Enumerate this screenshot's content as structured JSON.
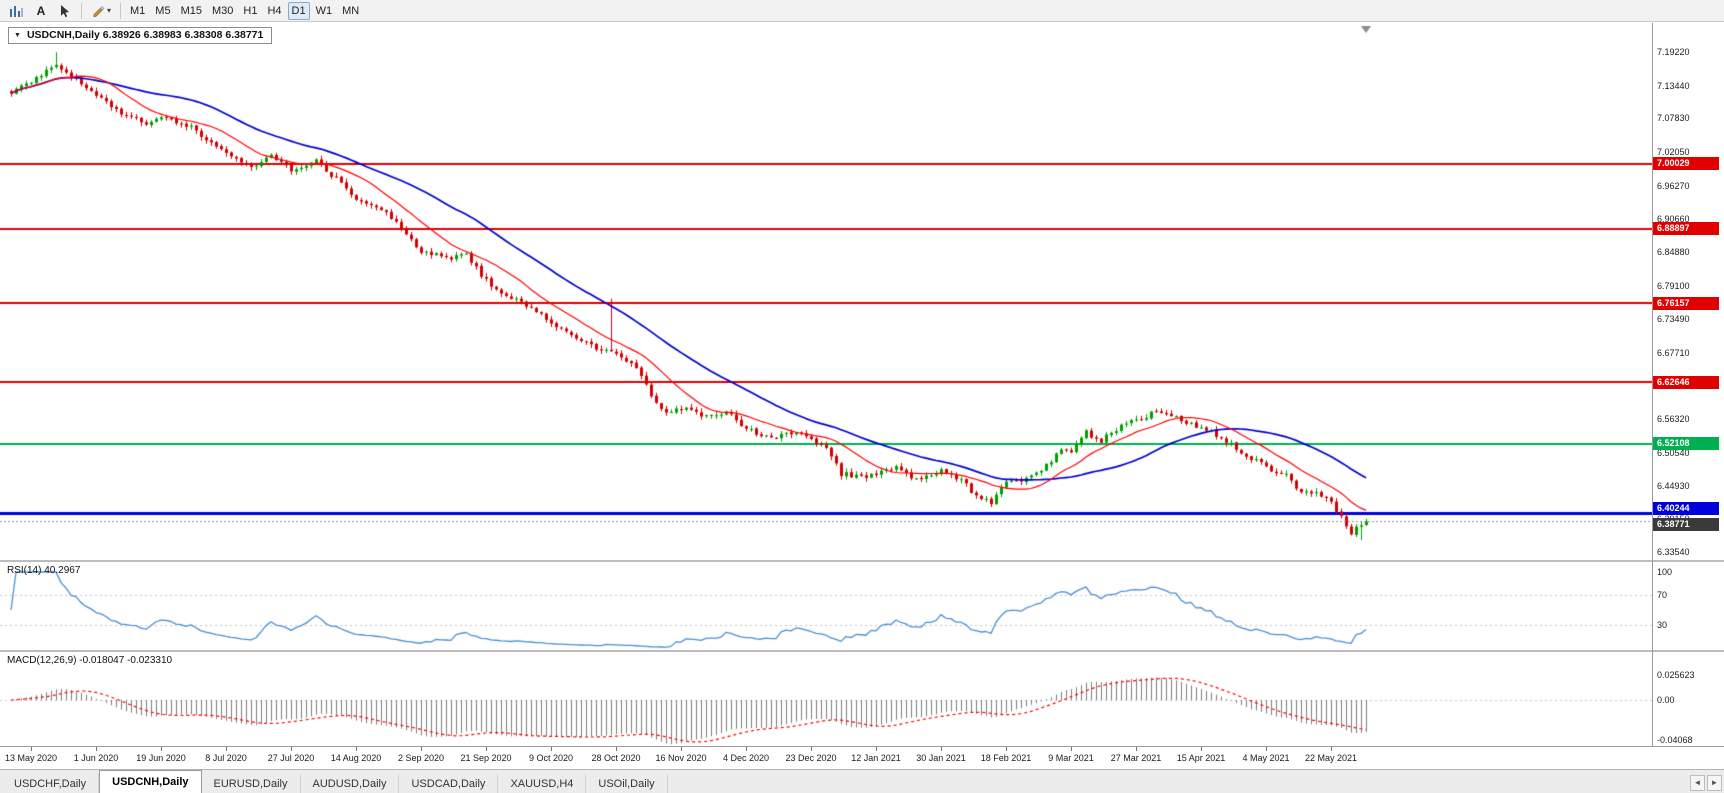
{
  "toolbar": {
    "text_tool_label": "A",
    "timeframes": [
      {
        "label": "M1",
        "active": false
      },
      {
        "label": "M5",
        "active": false
      },
      {
        "label": "M15",
        "active": false
      },
      {
        "label": "M30",
        "active": false
      },
      {
        "label": "H1",
        "active": false
      },
      {
        "label": "H4",
        "active": false
      },
      {
        "label": "D1",
        "active": true
      },
      {
        "label": "W1",
        "active": false
      },
      {
        "label": "MN",
        "active": false
      }
    ]
  },
  "chart": {
    "collapse_glyph": "▼",
    "header_text": "USDCNH,Daily 6.38926 6.38983 6.38308 6.38771"
  },
  "rsi_panel": {
    "label_text": "RSI(14) 40.2967",
    "axis_ticks": [
      "100",
      "70",
      "30"
    ]
  },
  "macd_panel": {
    "label_text": "MACD(12,26,9) -0.018047 -0.023310",
    "axis_ticks": [
      "0.025623",
      "0.00",
      "-0.04068"
    ]
  },
  "tabbar": {
    "scroll_left": "◄",
    "scroll_right": "►",
    "tabs": [
      {
        "label": "USDCHF,Daily",
        "active": false
      },
      {
        "label": "USDCNH,Daily",
        "active": true
      },
      {
        "label": "EURUSD,Daily",
        "active": false
      },
      {
        "label": "AUDUSD,Daily",
        "active": false
      },
      {
        "label": "USDCAD,Daily",
        "active": false
      },
      {
        "label": "XAUUSD,H4",
        "active": false
      },
      {
        "label": "USOil,Daily",
        "active": false
      }
    ]
  },
  "chart_data": {
    "type": "candlestick",
    "symbol": "USDCNH",
    "timeframe": "Daily",
    "ohlc_current": {
      "open": 6.38926,
      "high": 6.38983,
      "low": 6.38308,
      "close": 6.38771
    },
    "current_price": 6.38771,
    "current_price_label": "6.38771",
    "current_badge_color": "#3a3a3a",
    "bull_color": "#00A000",
    "bear_color": "#D40000",
    "price_axis_ticks": [
      "7.19220",
      "7.13440",
      "7.07830",
      "7.02050",
      "6.96270",
      "6.90660",
      "6.84880",
      "6.79100",
      "6.73490",
      "6.67710",
      "6.61930",
      "6.56320",
      "6.50540",
      "6.44930",
      "6.39150",
      "6.33540"
    ],
    "hlines": [
      {
        "label": "7.00029",
        "price": 7.00029,
        "color": "#e00000",
        "width": 2,
        "badge_dy": 0
      },
      {
        "label": "6.88897",
        "price": 6.88897,
        "color": "#e00000",
        "width": 2,
        "badge_dy": 0
      },
      {
        "label": "6.76157",
        "price": 6.76157,
        "color": "#e00000",
        "width": 2,
        "badge_dy": 0
      },
      {
        "label": "6.62646",
        "price": 6.62646,
        "color": "#e00000",
        "width": 2,
        "badge_dy": 0
      },
      {
        "label": "6.52108",
        "price": 6.52108,
        "color": "#00b050",
        "width": 2,
        "badge_dy": 0
      },
      {
        "label": "6.40244",
        "price": 6.40244,
        "color": "#0000dd",
        "width": 3,
        "badge_dy": -4
      }
    ],
    "date_labels": [
      "13 May 2020",
      "1 Jun 2020",
      "19 Jun 2020",
      "8 Jul 2020",
      "27 Jul 2020",
      "14 Aug 2020",
      "2 Sep 2020",
      "21 Sep 2020",
      "9 Oct 2020",
      "28 Oct 2020",
      "16 Nov 2020",
      "4 Dec 2020",
      "23 Dec 2020",
      "12 Jan 2021",
      "30 Jan 2021",
      "18 Feb 2021",
      "9 Mar 2021",
      "27 Mar 2021",
      "15 Apr 2021",
      "4 May 2021",
      "22 May 2021"
    ],
    "candle_count": 272,
    "candles_per_label": 13,
    "first_label_index": 4,
    "candle_anchors": [
      [
        0,
        7.125
      ],
      [
        5,
        7.148
      ],
      [
        9,
        7.172
      ],
      [
        12,
        7.15
      ],
      [
        17,
        7.118
      ],
      [
        22,
        7.086
      ],
      [
        27,
        7.07
      ],
      [
        30,
        7.078
      ],
      [
        36,
        7.062
      ],
      [
        43,
        7.015
      ],
      [
        48,
        6.998
      ],
      [
        52,
        7.012
      ],
      [
        56,
        6.992
      ],
      [
        61,
        7.005
      ],
      [
        65,
        6.975
      ],
      [
        69,
        6.94
      ],
      [
        75,
        6.916
      ],
      [
        82,
        6.852
      ],
      [
        87,
        6.838
      ],
      [
        91,
        6.846
      ],
      [
        95,
        6.8
      ],
      [
        99,
        6.772
      ],
      [
        104,
        6.756
      ],
      [
        108,
        6.725
      ],
      [
        113,
        6.7
      ],
      [
        118,
        6.682
      ],
      [
        121,
        6.672
      ],
      [
        125,
        6.655
      ],
      [
        128,
        6.602
      ],
      [
        131,
        6.572
      ],
      [
        134,
        6.582
      ],
      [
        139,
        6.566
      ],
      [
        143,
        6.576
      ],
      [
        147,
        6.546
      ],
      [
        152,
        6.531
      ],
      [
        156,
        6.541
      ],
      [
        160,
        6.528
      ],
      [
        163,
        6.512
      ],
      [
        166,
        6.47
      ],
      [
        170,
        6.462
      ],
      [
        173,
        6.468
      ],
      [
        177,
        6.478
      ],
      [
        181,
        6.46
      ],
      [
        186,
        6.476
      ],
      [
        190,
        6.458
      ],
      [
        193,
        6.432
      ],
      [
        196,
        6.42
      ],
      [
        199,
        6.452
      ],
      [
        203,
        6.458
      ],
      [
        207,
        6.484
      ],
      [
        210,
        6.512
      ],
      [
        212,
        6.504
      ],
      [
        215,
        6.54
      ],
      [
        218,
        6.527
      ],
      [
        221,
        6.546
      ],
      [
        225,
        6.562
      ],
      [
        229,
        6.576
      ],
      [
        232,
        6.568
      ],
      [
        236,
        6.556
      ],
      [
        238,
        6.548
      ],
      [
        242,
        6.531
      ],
      [
        246,
        6.506
      ],
      [
        249,
        6.491
      ],
      [
        251,
        6.479
      ],
      [
        255,
        6.466
      ],
      [
        258,
        6.434
      ],
      [
        261,
        6.442
      ],
      [
        264,
        6.418
      ],
      [
        266,
        6.396
      ],
      [
        268,
        6.368
      ],
      [
        270,
        6.381
      ],
      [
        271,
        6.3877
      ]
    ],
    "spikes": [
      {
        "index": 9,
        "high_add": 0.016
      },
      {
        "index": 120,
        "high_add": 0.085
      }
    ],
    "moving_averages": [
      {
        "period": 13,
        "color": "#ff0000",
        "width": 1.2
      },
      {
        "period": 34,
        "color": "#0000cc",
        "width": 1.7
      }
    ],
    "rsi": {
      "period": 14,
      "current": 40.2967,
      "color": "#4a8fd4",
      "levels": [
        70,
        30
      ],
      "range": [
        0,
        100
      ]
    },
    "macd": {
      "fast": 12,
      "slow": 26,
      "signal": 9,
      "current_main": -0.018047,
      "current_signal": -0.02331,
      "hist_color": "#7d7d7d",
      "signal_color": "#ff0000",
      "axis_values": [
        0.025623,
        0.0,
        -0.04068
      ]
    }
  }
}
